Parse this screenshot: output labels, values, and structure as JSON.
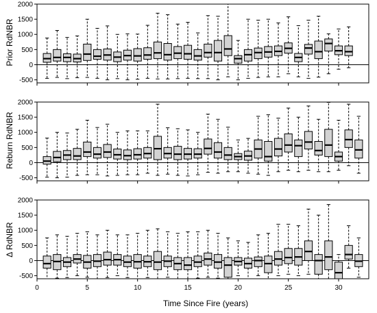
{
  "figure": {
    "xlabel": "Time Since Fire (years)",
    "colors": {
      "box_fill": "#d3d3d3",
      "stroke": "#000000",
      "background": "#ffffff"
    }
  },
  "chart_data": [
    {
      "type": "box",
      "ylabel": "Prior RdNBR",
      "xlim": [
        0,
        33
      ],
      "ylim": [
        -600,
        2000
      ],
      "yticks": [
        -500,
        0,
        500,
        1000,
        1500,
        2000
      ],
      "xticks": [
        0,
        5,
        10,
        15,
        20,
        25,
        30
      ],
      "zero_line": true,
      "boxes": [
        {
          "x": 1,
          "q1": 80,
          "median": 200,
          "q3": 370,
          "lo": -450,
          "hi": 880
        },
        {
          "x": 2,
          "q1": 120,
          "median": 240,
          "q3": 500,
          "lo": -420,
          "hi": 1130
        },
        {
          "x": 3,
          "q1": 100,
          "median": 240,
          "q3": 360,
          "lo": -460,
          "hi": 900
        },
        {
          "x": 4,
          "q1": 90,
          "median": 200,
          "q3": 350,
          "lo": -430,
          "hi": 950
        },
        {
          "x": 5,
          "q1": 140,
          "median": 350,
          "q3": 680,
          "lo": -420,
          "hi": 1500
        },
        {
          "x": 6,
          "q1": 180,
          "median": 280,
          "q3": 500,
          "lo": -450,
          "hi": 1200
        },
        {
          "x": 7,
          "q1": 150,
          "median": 320,
          "q3": 520,
          "lo": -500,
          "hi": 1280
        },
        {
          "x": 8,
          "q1": 100,
          "median": 250,
          "q3": 420,
          "lo": -460,
          "hi": 1000
        },
        {
          "x": 9,
          "q1": 150,
          "median": 300,
          "q3": 480,
          "lo": -500,
          "hi": 1020
        },
        {
          "x": 10,
          "q1": 120,
          "median": 290,
          "q3": 530,
          "lo": -480,
          "hi": 1010
        },
        {
          "x": 11,
          "q1": 180,
          "median": 320,
          "q3": 560,
          "lo": -450,
          "hi": 1300
        },
        {
          "x": 12,
          "q1": 200,
          "median": 390,
          "q3": 750,
          "lo": -470,
          "hi": 1700
        },
        {
          "x": 13,
          "q1": 150,
          "median": 330,
          "q3": 700,
          "lo": -470,
          "hi": 1650
        },
        {
          "x": 14,
          "q1": 200,
          "median": 380,
          "q3": 600,
          "lo": -460,
          "hi": 1340
        },
        {
          "x": 15,
          "q1": 180,
          "median": 360,
          "q3": 640,
          "lo": -450,
          "hi": 1400
        },
        {
          "x": 16,
          "q1": 150,
          "median": 290,
          "q3": 500,
          "lo": -460,
          "hi": 1050
        },
        {
          "x": 17,
          "q1": 250,
          "median": 400,
          "q3": 680,
          "lo": -460,
          "hi": 1620
        },
        {
          "x": 18,
          "q1": 120,
          "median": 400,
          "q3": 800,
          "lo": -500,
          "hi": 1600
        },
        {
          "x": 19,
          "q1": 300,
          "median": 520,
          "q3": 960,
          "lo": -400,
          "hi": 2350
        },
        {
          "x": 20,
          "q1": 50,
          "median": 200,
          "q3": 300,
          "lo": -500,
          "hi": 800
        },
        {
          "x": 21,
          "q1": 120,
          "median": 330,
          "q3": 500,
          "lo": -450,
          "hi": 1500
        },
        {
          "x": 22,
          "q1": 200,
          "median": 400,
          "q3": 550,
          "lo": -420,
          "hi": 1470
        },
        {
          "x": 23,
          "q1": 250,
          "median": 420,
          "q3": 600,
          "lo": -400,
          "hi": 1500
        },
        {
          "x": 24,
          "q1": 300,
          "median": 440,
          "q3": 620,
          "lo": -400,
          "hi": 1380
        },
        {
          "x": 25,
          "q1": 380,
          "median": 540,
          "q3": 720,
          "lo": -300,
          "hi": 1580
        },
        {
          "x": 26,
          "q1": 100,
          "median": 240,
          "q3": 370,
          "lo": -400,
          "hi": 1290
        },
        {
          "x": 27,
          "q1": 350,
          "median": 550,
          "q3": 670,
          "lo": -450,
          "hi": 1470
        },
        {
          "x": 28,
          "q1": 200,
          "median": 430,
          "q3": 780,
          "lo": -410,
          "hi": 1600
        },
        {
          "x": 29,
          "q1": 450,
          "median": 700,
          "q3": 850,
          "lo": -300,
          "hi": 1020
        },
        {
          "x": 30,
          "q1": 330,
          "median": 460,
          "q3": 620,
          "lo": -150,
          "hi": 1180
        },
        {
          "x": 31,
          "q1": 300,
          "median": 430,
          "q3": 620,
          "lo": -100,
          "hi": 1250
        }
      ]
    },
    {
      "type": "box",
      "ylabel": "Reburn RdNBR",
      "xlim": [
        0,
        33
      ],
      "ylim": [
        -600,
        2000
      ],
      "yticks": [
        -500,
        0,
        500,
        1000,
        1500,
        2000
      ],
      "xticks": [
        0,
        5,
        10,
        15,
        20,
        25,
        30
      ],
      "zero_line": true,
      "boxes": [
        {
          "x": 1,
          "q1": -50,
          "median": 50,
          "q3": 200,
          "lo": -480,
          "hi": 810
        },
        {
          "x": 2,
          "q1": 30,
          "median": 170,
          "q3": 370,
          "lo": -500,
          "hi": 1000
        },
        {
          "x": 3,
          "q1": 100,
          "median": 250,
          "q3": 400,
          "lo": -480,
          "hi": 980
        },
        {
          "x": 4,
          "q1": 100,
          "median": 220,
          "q3": 470,
          "lo": -420,
          "hi": 1100
        },
        {
          "x": 5,
          "q1": 200,
          "median": 350,
          "q3": 680,
          "lo": -400,
          "hi": 1400
        },
        {
          "x": 6,
          "q1": 150,
          "median": 280,
          "q3": 500,
          "lo": -400,
          "hi": 1160
        },
        {
          "x": 7,
          "q1": 170,
          "median": 350,
          "q3": 600,
          "lo": -440,
          "hi": 1270
        },
        {
          "x": 8,
          "q1": 120,
          "median": 260,
          "q3": 450,
          "lo": -420,
          "hi": 1000
        },
        {
          "x": 9,
          "q1": 100,
          "median": 230,
          "q3": 420,
          "lo": -400,
          "hi": 1050
        },
        {
          "x": 10,
          "q1": 120,
          "median": 260,
          "q3": 460,
          "lo": -400,
          "hi": 1050
        },
        {
          "x": 11,
          "q1": 150,
          "median": 300,
          "q3": 500,
          "lo": -350,
          "hi": 1050
        },
        {
          "x": 12,
          "q1": 100,
          "median": 460,
          "q3": 870,
          "lo": -420,
          "hi": 1930
        },
        {
          "x": 13,
          "q1": 150,
          "median": 300,
          "q3": 500,
          "lo": -380,
          "hi": 1150
        },
        {
          "x": 14,
          "q1": 100,
          "median": 280,
          "q3": 540,
          "lo": -420,
          "hi": 1120
        },
        {
          "x": 15,
          "q1": 120,
          "median": 280,
          "q3": 470,
          "lo": -440,
          "hi": 1080
        },
        {
          "x": 16,
          "q1": 150,
          "median": 280,
          "q3": 460,
          "lo": -400,
          "hi": 1000
        },
        {
          "x": 17,
          "q1": 280,
          "median": 470,
          "q3": 780,
          "lo": -320,
          "hi": 1600
        },
        {
          "x": 18,
          "q1": 150,
          "median": 350,
          "q3": 660,
          "lo": -350,
          "hi": 1430
        },
        {
          "x": 19,
          "q1": 100,
          "median": 250,
          "q3": 500,
          "lo": -300,
          "hi": 1170
        },
        {
          "x": 20,
          "q1": 100,
          "median": 200,
          "q3": 300,
          "lo": -300,
          "hi": 750
        },
        {
          "x": 21,
          "q1": 80,
          "median": 220,
          "q3": 380,
          "lo": -350,
          "hi": 800
        },
        {
          "x": 22,
          "q1": 150,
          "median": 450,
          "q3": 750,
          "lo": -380,
          "hi": 1530
        },
        {
          "x": 23,
          "q1": 50,
          "median": 200,
          "q3": 700,
          "lo": -420,
          "hi": 1580
        },
        {
          "x": 24,
          "q1": 220,
          "median": 450,
          "q3": 800,
          "lo": -300,
          "hi": 1470
        },
        {
          "x": 25,
          "q1": 350,
          "median": 580,
          "q3": 950,
          "lo": -250,
          "hi": 1800
        },
        {
          "x": 26,
          "q1": 200,
          "median": 560,
          "q3": 750,
          "lo": -300,
          "hi": 1500
        },
        {
          "x": 27,
          "q1": 450,
          "median": 680,
          "q3": 1030,
          "lo": -250,
          "hi": 1870
        },
        {
          "x": 28,
          "q1": 250,
          "median": 400,
          "q3": 700,
          "lo": -300,
          "hi": 1430
        },
        {
          "x": 29,
          "q1": 200,
          "median": 580,
          "q3": 1100,
          "lo": -300,
          "hi": 1990
        },
        {
          "x": 30,
          "q1": 50,
          "median": 200,
          "q3": 350,
          "lo": -250,
          "hi": 1400
        },
        {
          "x": 31,
          "q1": 500,
          "median": 760,
          "q3": 1080,
          "lo": -100,
          "hi": 1930
        },
        {
          "x": 32,
          "q1": 150,
          "median": 420,
          "q3": 750,
          "lo": -350,
          "hi": 1530
        }
      ]
    },
    {
      "type": "box",
      "ylabel": "Δ RdNBR",
      "xlim": [
        0,
        33
      ],
      "ylim": [
        -600,
        2000
      ],
      "yticks": [
        -500,
        0,
        500,
        1000,
        1500,
        2000
      ],
      "xticks": [
        0,
        5,
        10,
        15,
        20,
        25,
        30
      ],
      "zero_line": true,
      "boxes": [
        {
          "x": 1,
          "q1": -250,
          "median": -100,
          "q3": 150,
          "lo": -600,
          "hi": 750
        },
        {
          "x": 2,
          "q1": -300,
          "median": -30,
          "q3": 200,
          "lo": -580,
          "hi": 850
        },
        {
          "x": 3,
          "q1": -200,
          "median": -50,
          "q3": 100,
          "lo": -560,
          "hi": 800
        },
        {
          "x": 4,
          "q1": -80,
          "median": 50,
          "q3": 200,
          "lo": -500,
          "hi": 900
        },
        {
          "x": 5,
          "q1": -250,
          "median": -50,
          "q3": 170,
          "lo": -550,
          "hi": 950
        },
        {
          "x": 6,
          "q1": -200,
          "median": -20,
          "q3": 200,
          "lo": -600,
          "hi": 850
        },
        {
          "x": 7,
          "q1": -150,
          "median": 30,
          "q3": 280,
          "lo": -560,
          "hi": 1000
        },
        {
          "x": 8,
          "q1": -150,
          "median": 30,
          "q3": 200,
          "lo": -500,
          "hi": 850
        },
        {
          "x": 9,
          "q1": -200,
          "median": -50,
          "q3": 150,
          "lo": -560,
          "hi": 850
        },
        {
          "x": 10,
          "q1": -250,
          "median": -40,
          "q3": 200,
          "lo": -600,
          "hi": 900
        },
        {
          "x": 11,
          "q1": -200,
          "median": -40,
          "q3": 150,
          "lo": -560,
          "hi": 1000
        },
        {
          "x": 12,
          "q1": -300,
          "median": -50,
          "q3": 300,
          "lo": -600,
          "hi": 1050
        },
        {
          "x": 13,
          "q1": -200,
          "median": -20,
          "q3": 150,
          "lo": -550,
          "hi": 950
        },
        {
          "x": 14,
          "q1": -300,
          "median": -100,
          "q3": 100,
          "lo": -600,
          "hi": 900
        },
        {
          "x": 15,
          "q1": -300,
          "median": -150,
          "q3": 100,
          "lo": -600,
          "hi": 950
        },
        {
          "x": 16,
          "q1": -200,
          "median": -50,
          "q3": 150,
          "lo": -580,
          "hi": 950
        },
        {
          "x": 17,
          "q1": -150,
          "median": 50,
          "q3": 250,
          "lo": -550,
          "hi": 1000
        },
        {
          "x": 18,
          "q1": -250,
          "median": -50,
          "q3": 200,
          "lo": -580,
          "hi": 900
        },
        {
          "x": 19,
          "q1": -550,
          "median": -150,
          "q3": 100,
          "lo": -700,
          "hi": 750
        },
        {
          "x": 20,
          "q1": -150,
          "median": -30,
          "q3": 100,
          "lo": -500,
          "hi": 650
        },
        {
          "x": 21,
          "q1": -250,
          "median": -100,
          "q3": 80,
          "lo": -600,
          "hi": 600
        },
        {
          "x": 22,
          "q1": -200,
          "median": 0,
          "q3": 120,
          "lo": -500,
          "hi": 850
        },
        {
          "x": 23,
          "q1": -400,
          "median": -100,
          "q3": 150,
          "lo": -700,
          "hi": 900
        },
        {
          "x": 24,
          "q1": -150,
          "median": 50,
          "q3": 300,
          "lo": -500,
          "hi": 1200
        },
        {
          "x": 25,
          "q1": -100,
          "median": 100,
          "q3": 400,
          "lo": -450,
          "hi": 1200
        },
        {
          "x": 26,
          "q1": -150,
          "median": 120,
          "q3": 400,
          "lo": -500,
          "hi": 1150
        },
        {
          "x": 27,
          "q1": 0,
          "median": 300,
          "q3": 650,
          "lo": -450,
          "hi": 1700
        },
        {
          "x": 28,
          "q1": -450,
          "median": 0,
          "q3": 200,
          "lo": -650,
          "hi": 1500
        },
        {
          "x": 29,
          "q1": -300,
          "median": 120,
          "q3": 650,
          "lo": -600,
          "hi": 1850
        },
        {
          "x": 30,
          "q1": -700,
          "median": -400,
          "q3": -50,
          "lo": -900,
          "hi": 200
        },
        {
          "x": 31,
          "q1": 50,
          "median": 200,
          "q3": 500,
          "lo": -250,
          "hi": 1150
        },
        {
          "x": 32,
          "q1": -200,
          "median": -20,
          "q3": 200,
          "lo": -550,
          "hi": 750
        }
      ]
    }
  ]
}
